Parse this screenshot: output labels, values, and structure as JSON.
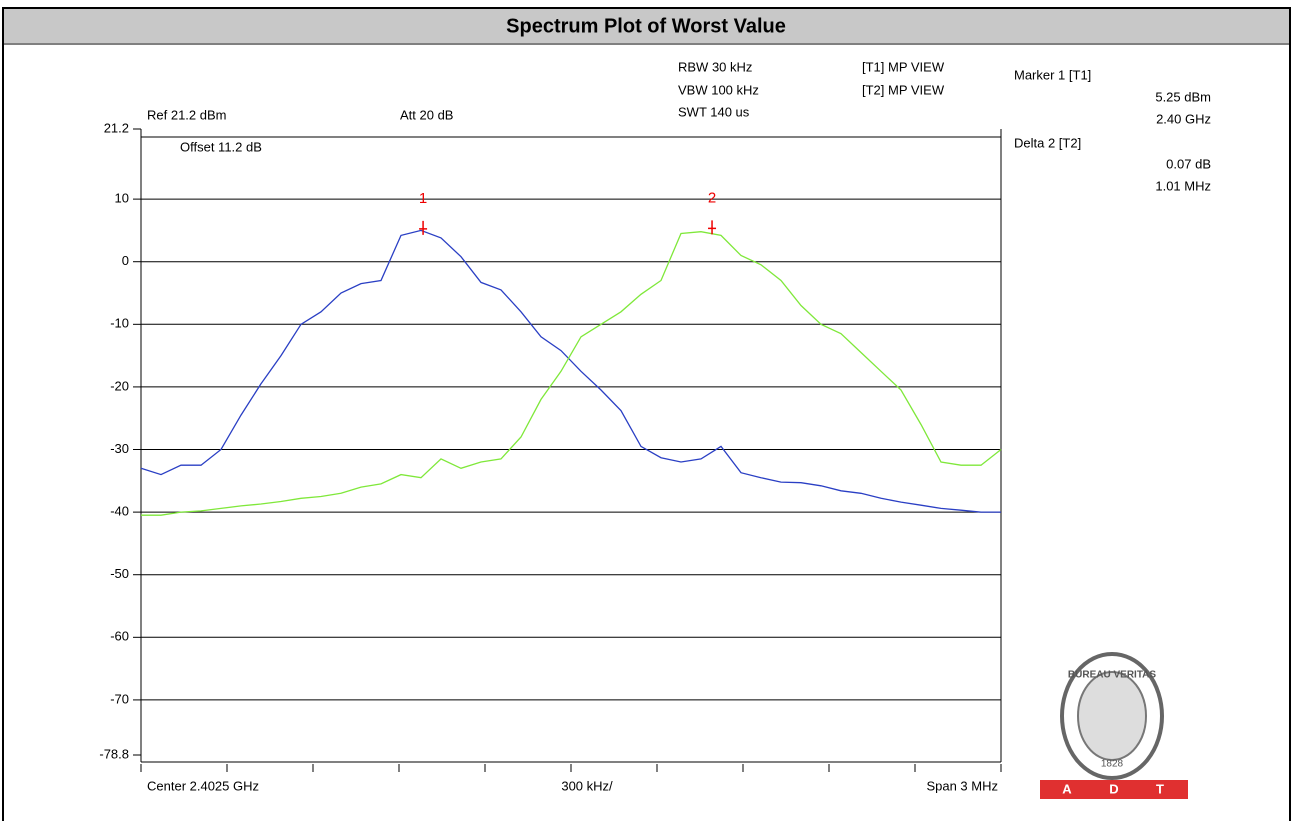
{
  "title": "Spectrum Plot of Worst Value",
  "chart_data": {
    "type": "line",
    "ylim": [
      -78.8,
      21.2
    ],
    "yticks": [
      21.2,
      10,
      0,
      -10,
      -20,
      -30,
      -40,
      -50,
      -60,
      -70,
      -78.8
    ],
    "grid": true,
    "series": [
      {
        "name": "[T1] MP VIEW",
        "color": "#2a3fc4",
        "values": [
          -33,
          -34,
          -32.5,
          -32.5,
          -30,
          -24.5,
          -19.5,
          -15,
          -10,
          -8,
          -5,
          -3.5,
          -3,
          4.2,
          5,
          3.8,
          0.8,
          -3.3,
          -4.5,
          -8,
          -12,
          -14.2,
          -17.5,
          -20.5,
          -23.8,
          -29.5,
          -31.3,
          -32,
          -31.5,
          -29.5,
          -33.7,
          -34.5,
          -35.2,
          -35.3,
          -35.8,
          -36.6,
          -37,
          -37.8,
          -38.4,
          -38.9,
          -39.4,
          -39.7,
          -40,
          -40
        ]
      },
      {
        "name": "[T2] MP VIEW",
        "color": "#7fe83a",
        "values": [
          -40.5,
          -40.5,
          -40,
          -39.8,
          -39.4,
          -39,
          -38.7,
          -38.3,
          -37.8,
          -37.5,
          -37,
          -36,
          -35.5,
          -34,
          -34.5,
          -31.5,
          -33,
          -32,
          -31.5,
          -28,
          -22,
          -17.5,
          -12,
          -10,
          -8,
          -5.2,
          -3,
          4.5,
          4.8,
          4.2,
          1,
          -0.5,
          -3,
          -7,
          -10,
          -11.5,
          -14.5,
          -17.5,
          -20.5,
          -26,
          -32,
          -32.5,
          -32.5,
          -30
        ]
      }
    ],
    "settings": {
      "ref": "Ref 21.2 dBm",
      "att": "Att  20 dB",
      "offset": "Offset 11.2 dB",
      "rbw": "RBW 30 kHz",
      "vbw": "VBW 100 kHz",
      "swt": "SWT 140 us"
    },
    "markers": [
      {
        "label": "1",
        "name": "Marker 1 [T1]",
        "value": 5.25,
        "value_label": "5.25 dBm",
        "freq": "2.40 GHz"
      },
      {
        "label": "2",
        "name": "Delta 2 [T2]",
        "delta": 0.07,
        "delta_label": "0.07 dB",
        "freq": "1.01 MHz"
      }
    ],
    "x_labels": {
      "center": "Center 2.4025 GHz",
      "div": "300 kHz/",
      "span": "Span 3 MHz"
    }
  },
  "logo": {
    "top": "BUREAU VERITAS",
    "year": "1828",
    "letters": [
      "A",
      "D",
      "T"
    ]
  }
}
